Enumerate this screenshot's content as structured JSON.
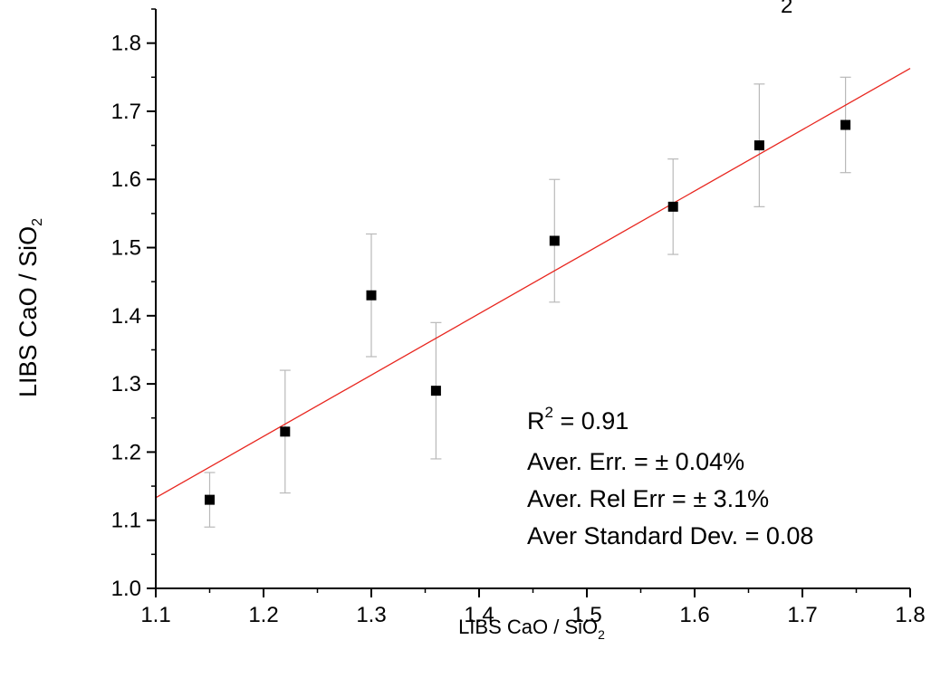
{
  "chart_data": {
    "type": "scatter",
    "title": "",
    "xlabel": {
      "main": "LIBS CaO / SiO",
      "sub": "2"
    },
    "ylabel": {
      "main": "LIBS CaO / SiO",
      "sub": "2"
    },
    "top_fragment": "2",
    "xlim": [
      1.1,
      1.8
    ],
    "ylim": [
      1.0,
      1.85
    ],
    "xticks": [
      "1.1",
      "1.2",
      "1.3",
      "1.4",
      "1.5",
      "1.6",
      "1.7",
      "1.8"
    ],
    "yticks": [
      "1.0",
      "1.1",
      "1.2",
      "1.3",
      "1.4",
      "1.5",
      "1.6",
      "1.7",
      "1.8"
    ],
    "grid": false,
    "series": [
      {
        "marker": "square",
        "color": "#000000",
        "points": [
          {
            "x": 1.15,
            "y": 1.13,
            "err_low": 1.09,
            "err_high": 1.17
          },
          {
            "x": 1.22,
            "y": 1.23,
            "err_low": 1.14,
            "err_high": 1.32
          },
          {
            "x": 1.3,
            "y": 1.43,
            "err_low": 1.34,
            "err_high": 1.52
          },
          {
            "x": 1.36,
            "y": 1.29,
            "err_low": 1.19,
            "err_high": 1.39
          },
          {
            "x": 1.47,
            "y": 1.51,
            "err_low": 1.42,
            "err_high": 1.6
          },
          {
            "x": 1.58,
            "y": 1.56,
            "err_low": 1.49,
            "err_high": 1.63
          },
          {
            "x": 1.66,
            "y": 1.65,
            "err_low": 1.56,
            "err_high": 1.74
          },
          {
            "x": 1.74,
            "y": 1.68,
            "err_low": 1.61,
            "err_high": 1.75
          }
        ]
      }
    ],
    "fit_line": {
      "color": "#e8261f",
      "x": [
        1.1,
        1.8
      ],
      "y": [
        1.133,
        1.763
      ]
    },
    "errorbar_color": "#b9b9b9",
    "annotations": {
      "r2": {
        "main": "R",
        "sup": "2",
        "rest": " = 0.91"
      },
      "lines": [
        "Aver. Err. = ± 0.04%",
        "Aver. Rel Err = ± 3.1%",
        "Aver Standard Dev. = 0.08"
      ]
    }
  }
}
